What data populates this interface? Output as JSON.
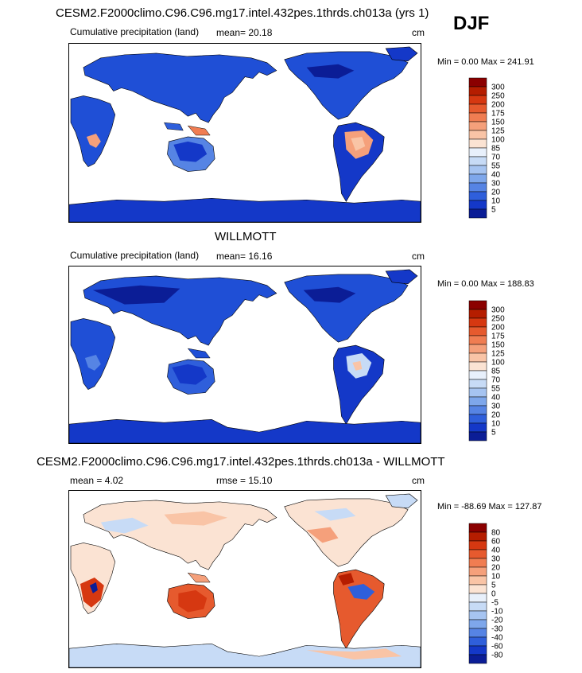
{
  "season": "DJF",
  "panel1": {
    "title": "CESM2.F2000climo.C96.C96.mg17.intel.432pes.1thrds.ch013a (yrs 1)",
    "variable": "Cumulative precipitation (land)",
    "mean": "mean=  20.18",
    "units": "cm",
    "minmax": "Min =   0.00 Max = 241.91",
    "colorbar_labels": [
      "300",
      "250",
      "200",
      "175",
      "150",
      "125",
      "100",
      "85",
      "70",
      "55",
      "40",
      "30",
      "20",
      "10",
      "5"
    ],
    "colorbar_colors": [
      "#8b0000",
      "#b51d00",
      "#d63811",
      "#e65a2e",
      "#f07d52",
      "#f5a07b",
      "#f9c4a6",
      "#fbe3d3",
      "#e8f0fb",
      "#c7dbf6",
      "#a6c4f1",
      "#7ea7eb",
      "#5684e4",
      "#2f5fdb",
      "#1438c8",
      "#0b1d96"
    ]
  },
  "panel2": {
    "title": "WILLMOTT",
    "variable": "Cumulative precipitation (land)",
    "mean": "mean=  16.16",
    "units": "cm",
    "minmax": "Min =   0.00 Max = 188.83",
    "colorbar_labels": [
      "300",
      "250",
      "200",
      "175",
      "150",
      "125",
      "100",
      "85",
      "70",
      "55",
      "40",
      "30",
      "20",
      "10",
      "5"
    ],
    "colorbar_colors": [
      "#8b0000",
      "#b51d00",
      "#d63811",
      "#e65a2e",
      "#f07d52",
      "#f5a07b",
      "#f9c4a6",
      "#fbe3d3",
      "#e8f0fb",
      "#c7dbf6",
      "#a6c4f1",
      "#7ea7eb",
      "#5684e4",
      "#2f5fdb",
      "#1438c8",
      "#0b1d96"
    ]
  },
  "panel3": {
    "title": "CESM2.F2000climo.C96.C96.mg17.intel.432pes.1thrds.ch013a - WILLMOTT",
    "mean": "mean =   4.02",
    "rmse": "rmse =   15.10",
    "units": "cm",
    "minmax": "Min = -88.69 Max = 127.87",
    "colorbar_labels": [
      "80",
      "60",
      "40",
      "30",
      "20",
      "10",
      "5",
      "0",
      "-5",
      "-10",
      "-20",
      "-30",
      "-40",
      "-60",
      "-80"
    ],
    "colorbar_colors": [
      "#8b0000",
      "#b51d00",
      "#d63811",
      "#e65a2e",
      "#f07d52",
      "#f5a07b",
      "#f9c4a6",
      "#fbe3d3",
      "#e8f0fb",
      "#c7dbf6",
      "#a6c4f1",
      "#7ea7eb",
      "#5684e4",
      "#2f5fdb",
      "#1438c8",
      "#0b1d96"
    ]
  }
}
